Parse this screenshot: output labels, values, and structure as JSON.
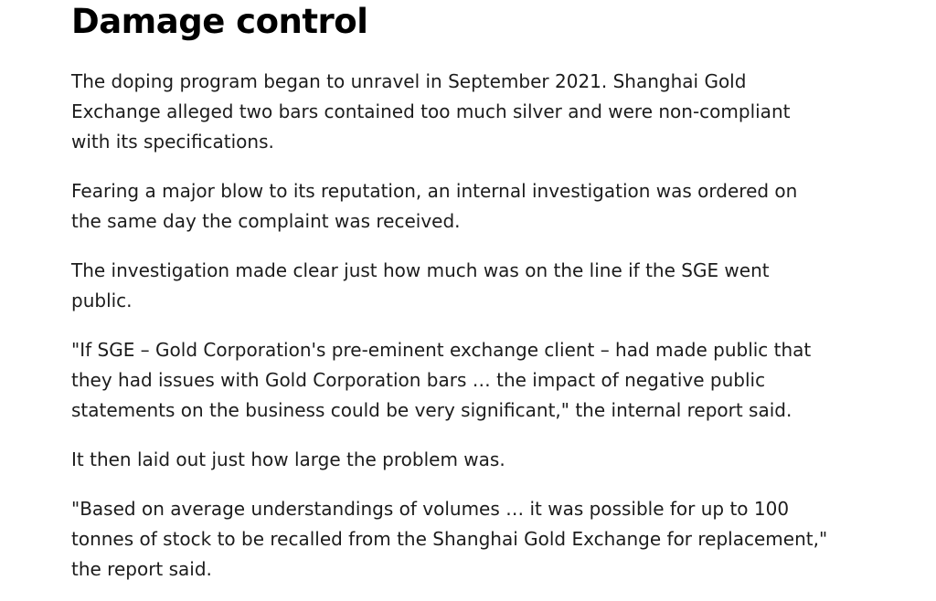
{
  "colors": {
    "background": "#ffffff",
    "heading_text": "#000000",
    "body_text": "#1c1c1c"
  },
  "article": {
    "heading": "Damage control",
    "paragraphs": [
      [
        "The doping program began to unravel in September 2021. Shanghai Gold",
        "Exchange alleged two bars contained too much silver and were non-compliant",
        "with its specifications."
      ],
      [
        "Fearing a major blow to its reputation, an internal investigation was ordered on",
        "the same day the complaint was received."
      ],
      [
        "The investigation made clear just how much was on the line if the SGE went",
        "public."
      ],
      [
        "\"If SGE – Gold Corporation's pre-eminent exchange client – had made public that",
        "they had issues with Gold Corporation bars … the impact of negative public",
        "statements on the business could be very significant,\" the internal report said."
      ],
      [
        "It then laid out just how large the problem was."
      ],
      [
        "\"Based on average understandings of volumes … it was possible for up to 100",
        "tonnes of stock to be recalled from the Shanghai Gold Exchange for replacement,\"",
        "the report said."
      ]
    ]
  }
}
